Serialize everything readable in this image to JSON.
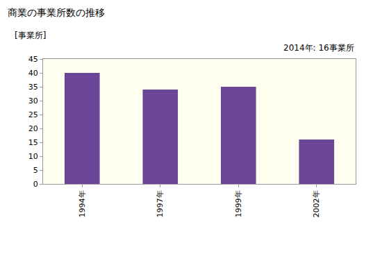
{
  "chart_data": {
    "type": "bar",
    "title": "商業の事業所数の推移",
    "y_label": "[事業所]",
    "annotations": [
      "2014年: 16事業所"
    ],
    "categories": [
      "1994年",
      "1997年",
      "1999年",
      "2002年"
    ],
    "values": [
      40,
      34,
      35,
      16
    ],
    "color": "#6b4596",
    "ylim": [
      0,
      45
    ],
    "yticks": [
      0,
      5,
      10,
      15,
      20,
      25,
      30,
      35,
      40,
      45
    ],
    "grid": false
  }
}
